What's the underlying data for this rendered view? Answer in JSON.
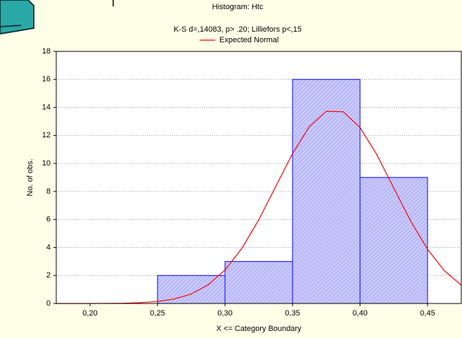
{
  "chart_data": {
    "type": "histogram",
    "title": "Histogram: Htc",
    "subtitle": "K-S d=,14083, p> .20; Lilliefors p<,15",
    "xlabel": "X <= Category Boundary",
    "ylabel": "No. of obs.",
    "bins": [
      0.25,
      0.3,
      0.35,
      0.4,
      0.45
    ],
    "values": [
      2,
      3,
      16,
      9
    ],
    "color": "#0000ff",
    "xlim": [
      0.175,
      0.475
    ],
    "ylim": [
      0,
      18
    ],
    "xticks": [
      {
        "value": 0.2,
        "label": "0,20"
      },
      {
        "value": 0.25,
        "label": "0,25"
      },
      {
        "value": 0.3,
        "label": "0,30"
      },
      {
        "value": 0.35,
        "label": "0,35"
      },
      {
        "value": 0.4,
        "label": "0,40"
      },
      {
        "value": 0.45,
        "label": "0,45"
      }
    ],
    "yticks": [
      0,
      2,
      4,
      6,
      8,
      10,
      12,
      14,
      16,
      18
    ],
    "grid": true,
    "curve": {
      "name": "Expected Normal",
      "color": "#ff0000",
      "x": [
        0.175,
        0.1875,
        0.2,
        0.2125,
        0.225,
        0.2375,
        0.25,
        0.2625,
        0.275,
        0.2875,
        0.3,
        0.3125,
        0.325,
        0.3375,
        0.35,
        0.3625,
        0.375,
        0.3875,
        0.4,
        0.4125,
        0.425,
        0.4375,
        0.45,
        0.4625,
        0.475
      ],
      "values": [
        0,
        0,
        0,
        0.01,
        0.02,
        0.06,
        0.14,
        0.32,
        0.68,
        1.33,
        2.39,
        3.94,
        5.98,
        8.34,
        10.71,
        12.63,
        13.72,
        13.69,
        12.57,
        10.62,
        8.24,
        5.89,
        3.87,
        2.34,
        1.3
      ]
    }
  }
}
